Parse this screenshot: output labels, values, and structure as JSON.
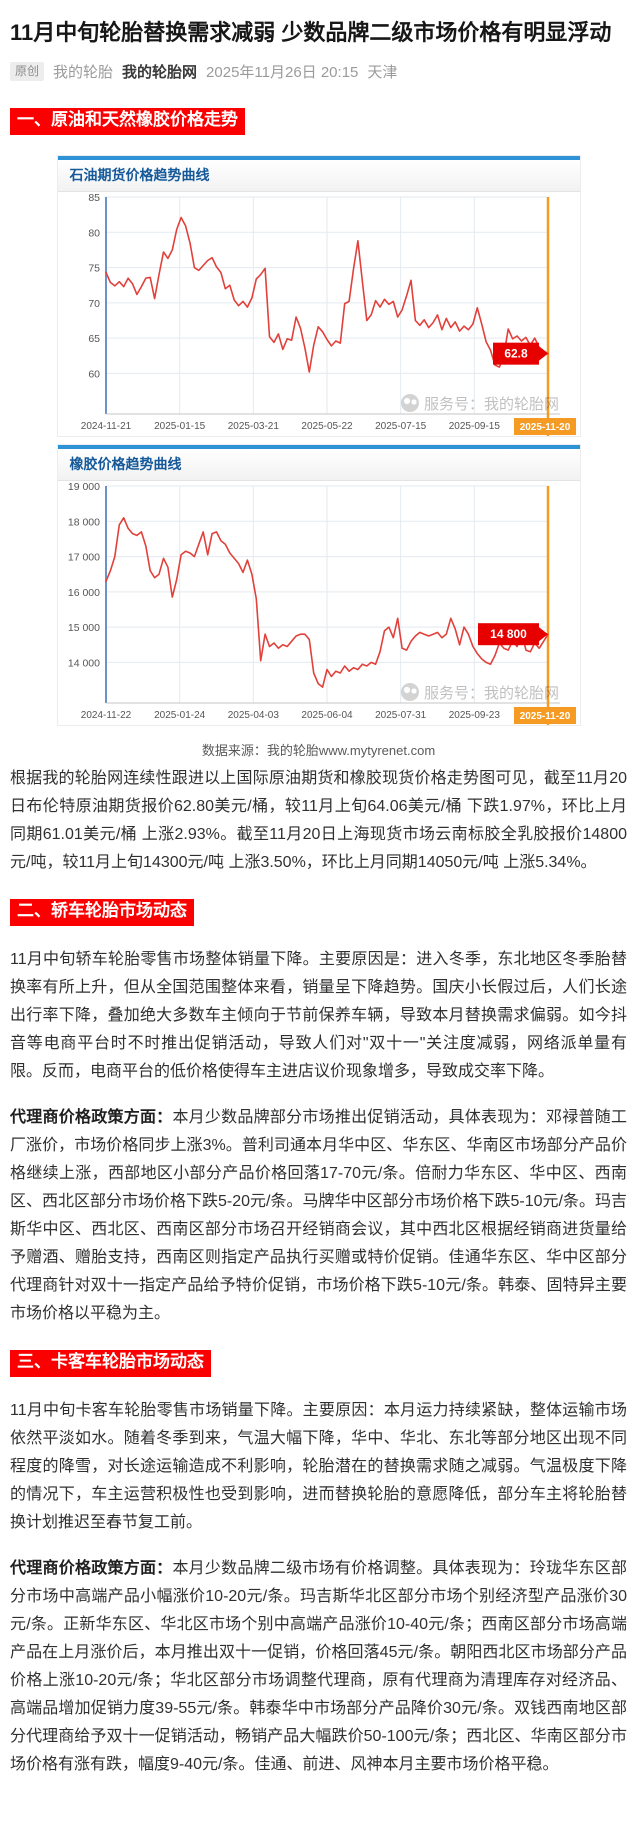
{
  "header": {
    "title": "11月中旬轮胎替换需求减弱 少数品牌二级市场价格有明显浮动",
    "byline": {
      "badge": "原创",
      "author": "我的轮胎",
      "account": "我的轮胎网",
      "datetime": "2025年11月26日 20:15",
      "location": "天津"
    }
  },
  "sections": {
    "s1": "一、原油和天然橡胶价格走势",
    "s2": "二、轿车轮胎市场动态",
    "s3": "三、卡客车轮胎市场动态"
  },
  "caption": "数据来源：我的轮胎www.mytyrenet.com",
  "body": {
    "p1": "根据我的轮胎网连续性跟进以上国际原油期货和橡胶现货价格走势图可见，截至11月20日布伦特原油期货报价62.80美元/桶，较11月上旬64.06美元/桶 下跌1.97%，环比上月同期61.01美元/桶 上涨2.93%。截至11月20日上海现货市场云南标胶全乳胶报价14800元/吨，较11月上旬14300元/吨 上涨3.50%，环比上月同期14050元/吨 上涨5.34%。",
    "s2p1": "11月中旬轿车轮胎零售市场整体销量下降。主要原因是：进入冬季，东北地区冬季胎替换率有所上升，但从全国范围整体来看，销量呈下降趋势。国庆小长假过后，人们长途出行率下降，叠加绝大多数车主倾向于节前保养车辆，导致本月替换需求偏弱。如今抖音等电商平台时不时推出促销活动，导致人们对\"双十一\"关注度减弱，网络派单量有限。反而，电商平台的低价格使得车主进店议价现象增多，导致成交率下降。",
    "s2p2_lead": "代理商价格政策方面：",
    "s2p2": "本月少数品牌部分市场推出促销活动，具体表现为：邓禄普随工厂涨价，市场价格同步上涨3%。普利司通本月华中区、华东区、华南区市场部分产品价格继续上涨，西部地区小部分产品价格回落17-70元/条。倍耐力华东区、华中区、西南区、西北区部分市场价格下跌5-20元/条。马牌华中区部分市场价格下跌5-10元/条。玛吉斯华中区、西北区、西南区部分市场召开经销商会议，其中西北区根据经销商进货量给予赠酒、赠胎支持，西南区则指定产品执行买赠或特价促销。佳通华东区、华中区部分代理商针对双十一指定产品给予特价促销，市场价格下跌5-10元/条。韩泰、固特异主要市场价格以平稳为主。",
    "s3p1": "11月中旬卡客车轮胎零售市场销量下降。主要原因：本月运力持续紧缺，整体运输市场依然平淡如水。随着冬季到来，气温大幅下降，华中、华北、东北等部分地区出现不同程度的降雪，对长途运输造成不利影响，轮胎潜在的替换需求随之减弱。气温极度下降的情况下，车主运营积极性也受到影响，进而替换轮胎的意愿降低，部分车主将轮胎替换计划推迟至春节复工前。",
    "s3p2_lead": "代理商价格政策方面：",
    "s3p2": "本月少数品牌二级市场有价格调整。具体表现为：玲珑华东区部分市场中高端产品小幅涨价10-20元/条。玛吉斯华北区部分市场个别经济型产品涨价30元/条。正新华东区、华北区市场个别中高端产品涨价10-40元/条；西南区部分市场高端产品在上月涨价后，本月推出双十一促销，价格回落45元/条。朝阳西北区市场部分产品价格上涨10-20元/条；华北区部分市场调整代理商，原有代理商为清理库存对经济品、高端品增加促销力度39-55元/条。韩泰华中市场部分产品降价30元/条。双钱西南地区部分代理商给予双十一促销活动，畅销产品大幅跌价50-100元/条；西北区、华南区部分市场价格有涨有跌，幅度9-40元/条。佳通、前进、风神本月主要市场价格平稳。"
  },
  "colors": {
    "section_red": "#fa0000",
    "line_red": "#e2403a",
    "badge_red": "#e60000",
    "orange": "#f59a23",
    "topbar_blue": "#2e93d6",
    "title_blue": "#15599a",
    "axis_blue": "#6b93c9",
    "grid": "#e3eaef"
  },
  "chart_data": [
    {
      "type": "line",
      "title": "石油期货价格趋势曲线",
      "unit": "美元/桶",
      "watermark": "服务号：我的轮胎网",
      "legend_position": "none",
      "grid": true,
      "x_ticks": [
        "2024-11-21",
        "2025-01-15",
        "2025-03-21",
        "2025-05-22",
        "2025-07-15",
        "2025-09-15"
      ],
      "x_last_tick": "2025-11-20",
      "y_ticks": [
        85,
        80,
        75,
        70,
        65,
        60
      ],
      "ylim": [
        54.25,
        85
      ],
      "last_value": 62.8,
      "last_value_label": "62.8",
      "values": [
        74.3,
        72.9,
        72.4,
        73.0,
        72.3,
        73.5,
        72.7,
        71.2,
        72.3,
        73.5,
        73.6,
        70.6,
        74.0,
        77.2,
        76.3,
        77.5,
        80.4,
        82.1,
        80.9,
        78.5,
        75.0,
        74.6,
        75.3,
        76.0,
        76.4,
        75.1,
        74.3,
        72.0,
        72.5,
        70.4,
        69.6,
        70.2,
        69.4,
        70.7,
        73.4,
        74.0,
        74.9,
        65.2,
        64.4,
        65.6,
        63.4,
        64.9,
        64.7,
        68.0,
        66.4,
        63.6,
        60.2,
        64.0,
        66.6,
        65.9,
        64.8,
        63.9,
        64.6,
        64.3,
        69.9,
        70.2,
        74.8,
        78.8,
        73.0,
        67.5,
        68.3,
        70.3,
        69.4,
        70.5,
        69.8,
        70.2,
        68.0,
        69.0,
        71.0,
        73.2,
        67.5,
        66.8,
        67.6,
        66.5,
        67.2,
        68.3,
        66.2,
        67.8,
        66.5,
        67.3,
        66.0,
        66.7,
        66.2,
        67.0,
        69.3,
        67.0,
        64.5,
        63.3,
        61.2,
        60.9,
        62.5,
        66.3,
        64.9,
        65.3,
        64.6,
        65.1,
        64.0,
        65.0,
        63.7,
        63.2,
        62.8
      ]
    },
    {
      "type": "line",
      "title": "橡胶价格趋势曲线",
      "unit": "元/吨",
      "watermark": "服务号：我的轮胎网",
      "legend_position": "none",
      "grid": true,
      "x_ticks": [
        "2024-11-22",
        "2025-01-24",
        "2025-04-03",
        "2025-06-04",
        "2025-07-31",
        "2025-09-23"
      ],
      "x_last_tick": "2025-11-20",
      "y_ticks": [
        19000,
        18000,
        17000,
        16000,
        15000,
        14000
      ],
      "y_tick_labels": [
        "19 000",
        "18 000",
        "17 000",
        "16 000",
        "15 000",
        "14 000"
      ],
      "ylim": [
        12850,
        19000
      ],
      "last_value": 14800,
      "last_value_label": "14 800",
      "values": [
        16300,
        16600,
        17000,
        17900,
        18100,
        17800,
        17650,
        17600,
        17700,
        17300,
        16600,
        16400,
        16500,
        16950,
        16700,
        15850,
        16350,
        17050,
        17150,
        17100,
        17000,
        17350,
        17700,
        17050,
        17650,
        17700,
        17450,
        17350,
        17100,
        16950,
        16800,
        16550,
        16900,
        16500,
        15800,
        14050,
        14800,
        14450,
        14550,
        14400,
        14500,
        14450,
        14600,
        14750,
        14800,
        14800,
        14650,
        13700,
        13400,
        13300,
        13800,
        13600,
        13750,
        13700,
        13900,
        13750,
        13850,
        13800,
        13950,
        13900,
        14000,
        13950,
        14300,
        14900,
        15000,
        14700,
        15250,
        14400,
        14350,
        14600,
        14750,
        14850,
        14800,
        14750,
        14800,
        14850,
        14700,
        14800,
        15250,
        14950,
        14500,
        15000,
        14800,
        14450,
        14250,
        14100,
        14000,
        13950,
        14200,
        14550,
        14400,
        14350,
        14600,
        14450,
        14900,
        14350,
        14300,
        14550,
        14400,
        14600,
        14800
      ]
    }
  ]
}
